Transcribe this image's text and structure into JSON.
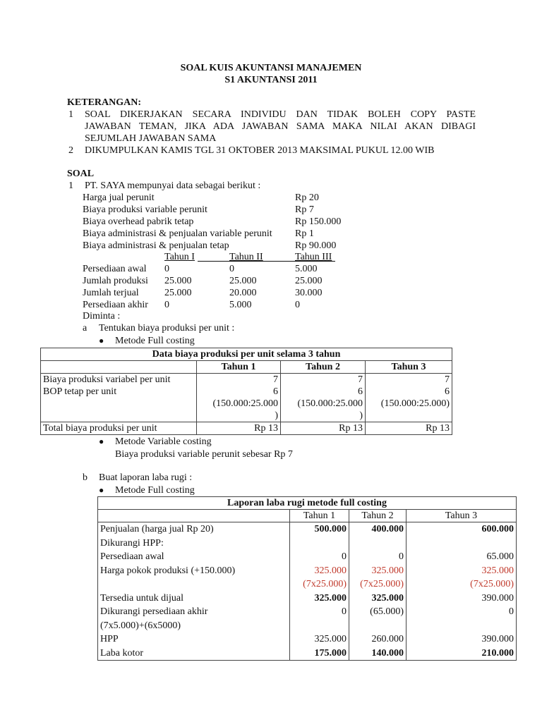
{
  "title": [
    "SOAL KUIS AKUNTANSI MANAJEMEN",
    "S1 AKUNTANSI 2011"
  ],
  "keterangan": {
    "heading": "KETERANGAN:",
    "items": [
      {
        "num": "1",
        "lines": [
          "SOAL DIKERJAKAN SECARA INDIVIDU DAN TIDAK BOLEH COPY PASTE",
          "JAWABAN TEMAN, JIKA ADA JAWABAN SAMA MAKA NILAI AKAN DIBAGI",
          "SEJUMLAH JAWABAN  SAMA"
        ]
      },
      {
        "num": "2",
        "lines": [
          "DIKUMPULKAN KAMIS TGL 31 OKTOBER 2013 MAKSIMAL PUKUL 12.00 WIB"
        ]
      }
    ]
  },
  "soal": {
    "heading": "SOAL",
    "num": "1",
    "intro": "PT. SAYA mempunyai data sebagai berikut :",
    "data": [
      {
        "label": "Harga jual perunit",
        "value": "Rp 20"
      },
      {
        "label": "Biaya produksi variable perunit",
        "value": "Rp 7"
      },
      {
        "label": "Biaya overhead pabrik tetap",
        "value": "Rp 150.000"
      },
      {
        "label": "Biaya administrasi & penjualan variable perunit",
        "value": "Rp 1"
      },
      {
        "label": "Biaya administrasi & penjualan tetap",
        "value": "Rp 90.000"
      }
    ],
    "year_headers": [
      "Tahun I",
      "Tahun II",
      "Tahun III"
    ],
    "year_rows": [
      {
        "label": "Persediaan awal",
        "values": [
          "0",
          "0",
          "5.000"
        ]
      },
      {
        "label": "Jumlah produksi",
        "values": [
          "25.000",
          "25.000",
          "25.000"
        ]
      },
      {
        "label": "Jumlah terjual",
        "values": [
          "25.000",
          "20.000",
          "30.000"
        ]
      },
      {
        "label": "Persediaan akhir",
        "values": [
          "0",
          "5.000",
          "0"
        ]
      }
    ],
    "diminta": "Diminta :",
    "a": {
      "letter": "a",
      "text": "Tentukan biaya produksi per unit :",
      "bullet1": "Metode Full costing",
      "bullet2": "Metode Variable costing",
      "bullet2_note": "Biaya produksi variable perunit sebesar Rp 7"
    },
    "b": {
      "letter": "b",
      "text": "Buat laporan laba rugi :",
      "bullet1": "Metode Full costing"
    }
  },
  "table1": {
    "title": "Data biaya produksi per unit selama 3 tahun",
    "headers": [
      "Tahun 1",
      "Tahun 2",
      "Tahun 3"
    ],
    "labels": [
      "Biaya produksi variabel per unit",
      "BOP tetap per unit"
    ],
    "cols": [
      [
        "7",
        "6",
        "(150.000:25.000",
        ")"
      ],
      [
        "7",
        "6",
        "(150.000:25.000",
        ")"
      ],
      [
        "7",
        "6",
        "(150.000:25.000)",
        ""
      ]
    ],
    "total_label": "Total biaya produksi per unit",
    "totals": [
      "Rp 13",
      "Rp 13",
      "Rp 13"
    ]
  },
  "table2": {
    "title": "Laporan laba rugi metode full costing",
    "headers": [
      "Tahun 1",
      "Tahun 2",
      "Tahun 3"
    ],
    "rows": [
      {
        "label": "Penjualan (harga jual Rp 20)",
        "values": [
          "500.000",
          "400.000",
          "600.000"
        ],
        "bold": [
          true,
          true,
          true
        ]
      },
      {
        "label": "Dikurangi HPP:",
        "values": [
          "",
          "",
          ""
        ]
      },
      {
        "label": "Persediaan awal",
        "values": [
          "0",
          "0",
          "65.000"
        ]
      },
      {
        "label": "Harga pokok produksi (+150.000)",
        "values": [
          "325.000",
          "325.000",
          "325.000"
        ],
        "red": true
      },
      {
        "label": "",
        "values": [
          "(7x25.000)",
          "(7x25.000)",
          "(7x25.000)"
        ],
        "red": true
      },
      {
        "label": "Tersedia untuk dijual",
        "values": [
          "325.000",
          "325.000",
          "390.000"
        ],
        "bold": [
          true,
          true,
          false
        ]
      },
      {
        "label": "Dikurangi persediaan akhir",
        "values": [
          "0",
          "(65.000)",
          "0"
        ]
      },
      {
        "label": "(7x5.000)+(6x5000)",
        "values": [
          "",
          "",
          ""
        ]
      },
      {
        "label": "HPP",
        "values": [
          "325.000",
          "260.000",
          "390.000"
        ]
      },
      {
        "label": "Laba kotor",
        "values": [
          "175.000",
          "140.000",
          "210.000"
        ],
        "bold": [
          true,
          true,
          true
        ]
      }
    ],
    "red_color": "#c0392b"
  }
}
